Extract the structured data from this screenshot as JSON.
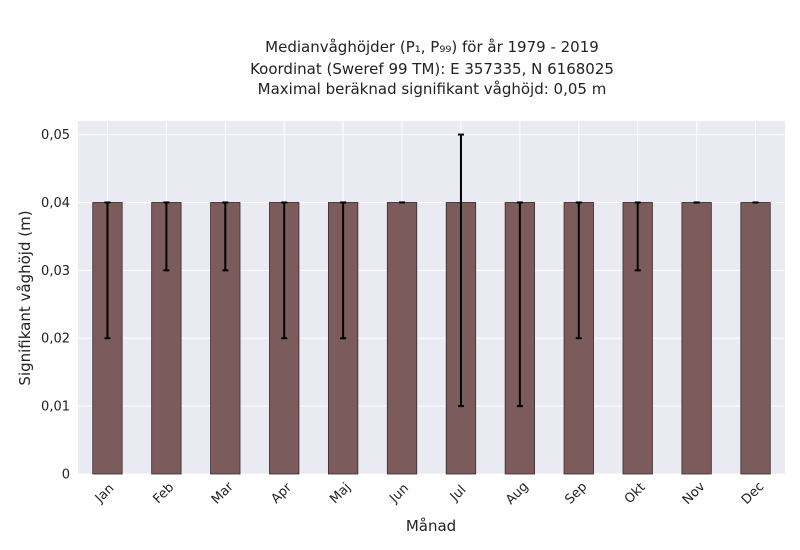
{
  "chart_data": {
    "type": "bar",
    "title_lines": [
      "Medianvåghöjder (P₁, P₉₉) för år 1979 - 2019",
      "Koordinat (Sweref 99 TM): E 357335, N 6168025",
      "Maximal beräknad signifikant våghöjd: 0,05 m"
    ],
    "xlabel": "Månad",
    "ylabel": "Signifikant våghöjd (m)",
    "categories": [
      "Jan",
      "Feb",
      "Mar",
      "Apr",
      "Maj",
      "Jun",
      "Jul",
      "Aug",
      "Sep",
      "Okt",
      "Nov",
      "Dec"
    ],
    "values": [
      0.04,
      0.04,
      0.04,
      0.04,
      0.04,
      0.04,
      0.04,
      0.04,
      0.04,
      0.04,
      0.04,
      0.04
    ],
    "error_low": [
      0.02,
      0.03,
      0.03,
      0.02,
      0.02,
      0.04,
      0.01,
      0.01,
      0.02,
      0.03,
      0.04,
      0.04
    ],
    "error_high": [
      0.04,
      0.04,
      0.04,
      0.04,
      0.04,
      0.04,
      0.05,
      0.04,
      0.04,
      0.04,
      0.04,
      0.04
    ],
    "ylim": [
      0,
      0.052
    ],
    "yticks": [
      0,
      0.01,
      0.02,
      0.03,
      0.04,
      0.05
    ],
    "ytick_labels": [
      "0",
      "0,01",
      "0,02",
      "0,03",
      "0,04",
      "0,05"
    ],
    "grid": true,
    "colors": {
      "bar": "#7b5b5b",
      "bar_edge": "#3a2a2a",
      "error": "#000000",
      "plot_bg": "#eaeaf2",
      "grid": "#ffffff"
    }
  }
}
